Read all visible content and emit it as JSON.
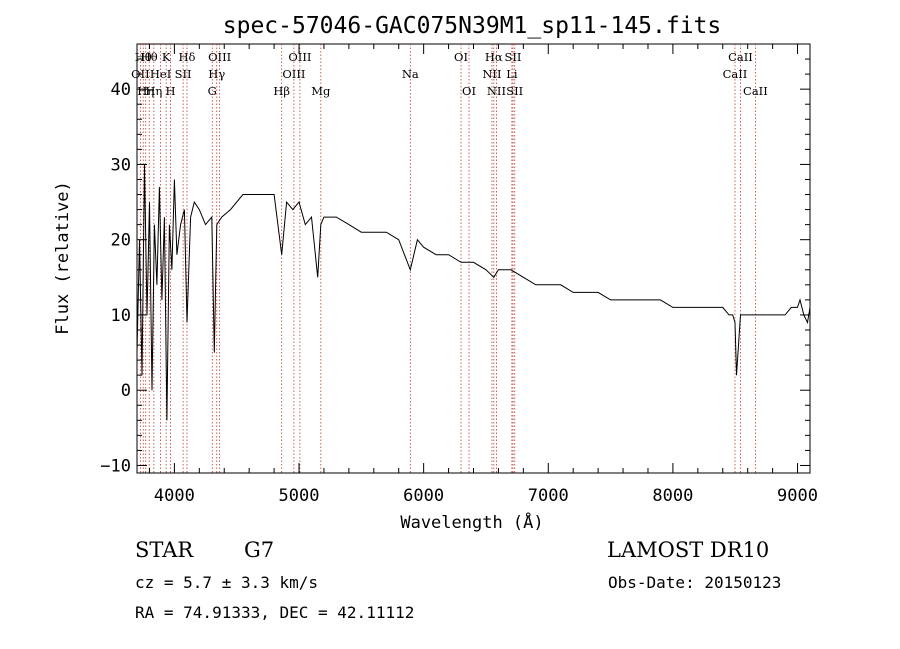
{
  "chart_data": {
    "type": "line",
    "title": "spec-57046-GAC075N39M1_sp11-145.fits",
    "xlabel": "Wavelength (Å)",
    "ylabel": "Flux (relative)",
    "xlim": [
      3700,
      9100
    ],
    "ylim": [
      -11,
      46
    ],
    "xticks": [
      4000,
      5000,
      6000,
      7000,
      8000,
      9000
    ],
    "yticks": [
      -10,
      0,
      10,
      20,
      30,
      40
    ],
    "grid": false,
    "line_color": "#000000",
    "marker_color": "#c0392b",
    "series": [
      {
        "x": [
          3700,
          3720,
          3740,
          3760,
          3780,
          3800,
          3820,
          3840,
          3860,
          3880,
          3900,
          3920,
          3940,
          3960,
          3980,
          4000,
          4020,
          4050,
          4080,
          4101,
          4130,
          4160,
          4200,
          4250,
          4300,
          4320,
          4340,
          4380,
          4450,
          4550,
          4650,
          4750,
          4800,
          4861,
          4900,
          4950,
          5000,
          5050,
          5100,
          5150,
          5175,
          5200,
          5300,
          5400,
          5500,
          5600,
          5700,
          5800,
          5893,
          5950,
          6000,
          6100,
          6200,
          6300,
          6400,
          6500,
          6563,
          6600,
          6700,
          6800,
          6900,
          7000,
          7100,
          7200,
          7300,
          7400,
          7500,
          7600,
          7700,
          7800,
          7900,
          8000,
          8100,
          8200,
          8300,
          8400,
          8450,
          8480,
          8498,
          8510,
          8542,
          8560,
          8600,
          8662,
          8700,
          8800,
          8900,
          8950,
          9000,
          9020,
          9050,
          9080,
          9100
        ],
        "y": [
          5,
          20,
          2,
          30,
          10,
          25,
          0,
          22,
          14,
          27,
          12,
          23,
          -4,
          22,
          16,
          28,
          18,
          22,
          24,
          9,
          23,
          25,
          24,
          22,
          23,
          5,
          22,
          23,
          24,
          26,
          26,
          26,
          26,
          18,
          25,
          24,
          25,
          22,
          23,
          15,
          22,
          23,
          23,
          22,
          21,
          21,
          21,
          20,
          16,
          20,
          19,
          18,
          18,
          17,
          17,
          16,
          15,
          16,
          16,
          15,
          14,
          14,
          14,
          13,
          13,
          13,
          12,
          12,
          12,
          12,
          12,
          11,
          11,
          11,
          11,
          11,
          10,
          10,
          9,
          2,
          10,
          10,
          10,
          10,
          10,
          10,
          10,
          11,
          11,
          12,
          10,
          9,
          11
        ]
      }
    ],
    "line_markers": [
      {
        "x": 3727,
        "label": "OII",
        "row": 1
      },
      {
        "x": 3750,
        "label": "Hθ",
        "row": 0
      },
      {
        "x": 3770,
        "label": "Hη",
        "row": 2
      },
      {
        "x": 3798,
        "label": "Hθ",
        "row": 0
      },
      {
        "x": 3835,
        "label": "Hη",
        "row": 2
      },
      {
        "x": 3889,
        "label": "HeI",
        "row": 1
      },
      {
        "x": 3934,
        "label": "K",
        "row": 0
      },
      {
        "x": 3969,
        "label": "H",
        "row": 2
      },
      {
        "x": 4070,
        "label": "SII",
        "row": 1
      },
      {
        "x": 4101,
        "label": "Hδ",
        "row": 0
      },
      {
        "x": 4304,
        "label": "G",
        "row": 2
      },
      {
        "x": 4340,
        "label": "Hγ",
        "row": 1
      },
      {
        "x": 4363,
        "label": "OIII",
        "row": 0
      },
      {
        "x": 4861,
        "label": "Hβ",
        "row": 2
      },
      {
        "x": 4959,
        "label": "OIII",
        "row": 1
      },
      {
        "x": 5007,
        "label": "OIII",
        "row": 0
      },
      {
        "x": 5175,
        "label": "Mg",
        "row": 2
      },
      {
        "x": 5893,
        "label": "Na",
        "row": 1
      },
      {
        "x": 6300,
        "label": "OI",
        "row": 0
      },
      {
        "x": 6364,
        "label": "OI",
        "row": 2
      },
      {
        "x": 6548,
        "label": "NII",
        "row": 1
      },
      {
        "x": 6563,
        "label": "Hα",
        "row": 0
      },
      {
        "x": 6584,
        "label": "NII",
        "row": 2
      },
      {
        "x": 6708,
        "label": "Li",
        "row": 1
      },
      {
        "x": 6717,
        "label": "SII",
        "row": 0
      },
      {
        "x": 6731,
        "label": "SII",
        "row": 2
      },
      {
        "x": 8498,
        "label": "CaII",
        "row": 1
      },
      {
        "x": 8542,
        "label": "CaII",
        "row": 0
      },
      {
        "x": 8662,
        "label": "CaII",
        "row": 2
      }
    ]
  },
  "info": {
    "object_class": "STAR",
    "subclass": "G7",
    "survey": "LAMOST DR10",
    "redshift": "cz =  5.7 ± 3.3 km/s",
    "obs_date": "Obs-Date: 20150123",
    "coords": "RA =  74.91333, DEC =  42.11112"
  }
}
